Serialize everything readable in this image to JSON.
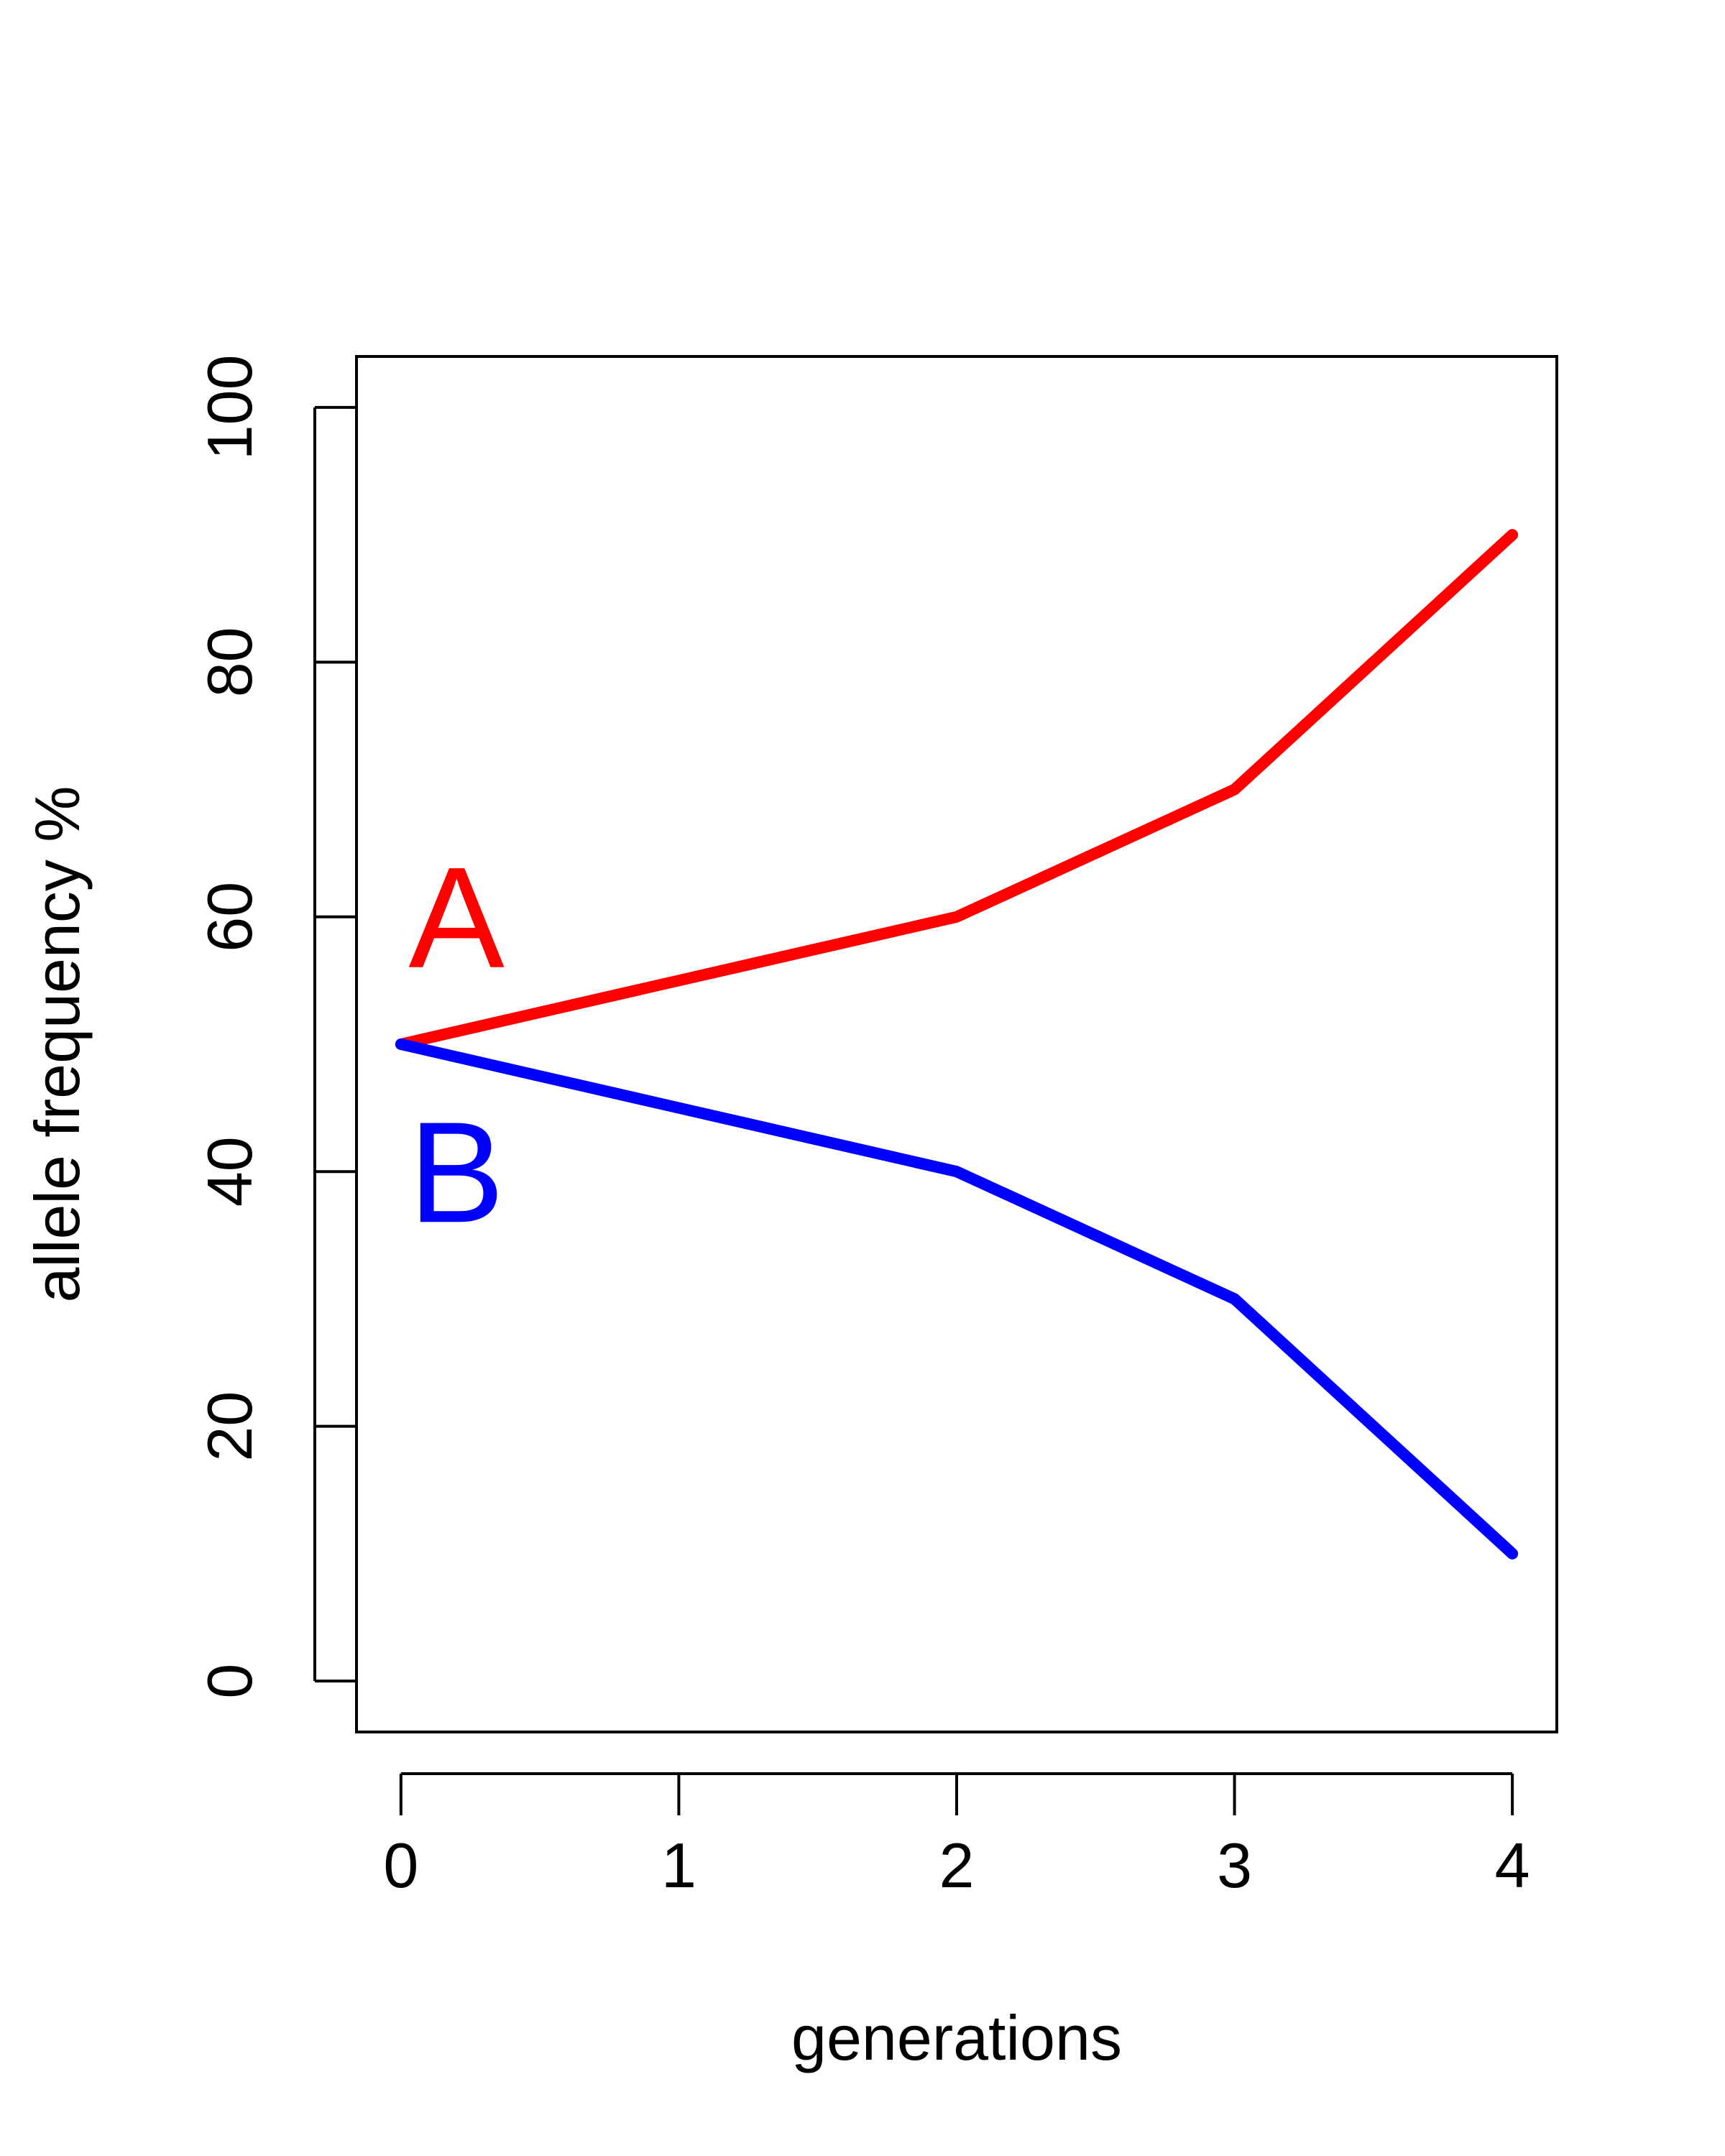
{
  "chart_data": {
    "type": "line",
    "xlabel": "generations",
    "ylabel": "allele frequency %",
    "x": [
      0,
      1,
      2,
      3,
      4
    ],
    "xticks": [
      "0",
      "1",
      "2",
      "3",
      "4"
    ],
    "yticks": [
      "0",
      "20",
      "40",
      "60",
      "80",
      "100"
    ],
    "xlim": [
      -0.16,
      4.16
    ],
    "ylim": [
      -4,
      104
    ],
    "grid": false,
    "series": [
      {
        "name": "A",
        "color": "#ff0000",
        "values": [
          50,
          55,
          60,
          70,
          90
        ]
      },
      {
        "name": "B",
        "color": "#0000ff",
        "values": [
          50,
          45,
          40,
          30,
          10
        ]
      }
    ]
  }
}
